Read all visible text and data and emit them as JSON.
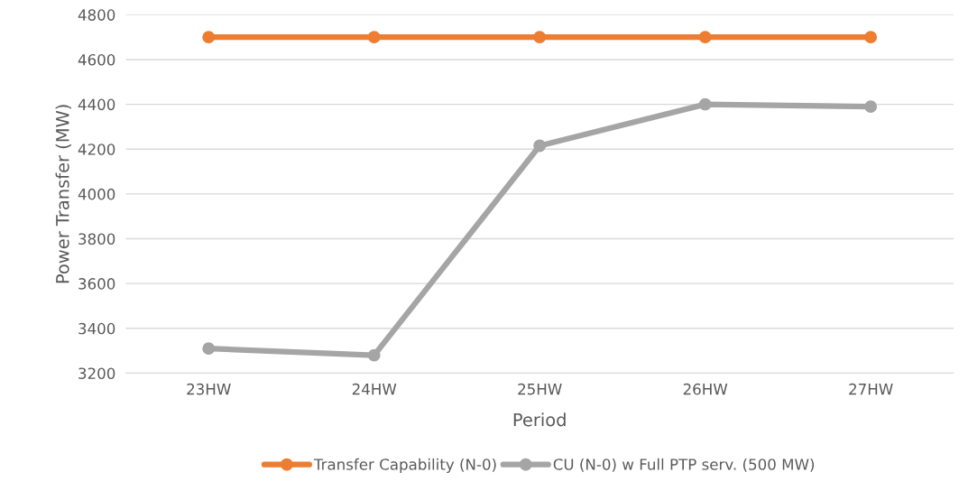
{
  "chart_data": {
    "type": "line",
    "xlabel": "Period",
    "ylabel": "Power Transfer (MW)",
    "categories": [
      "23HW",
      "24HW",
      "25HW",
      "26HW",
      "27HW"
    ],
    "series": [
      {
        "name": "Transfer Capability (N-0)",
        "color": "#ed7d31",
        "values": [
          4700,
          4700,
          4700,
          4700,
          4700
        ]
      },
      {
        "name": "CU (N-0) w Full PTP serv. (500 MW)",
        "color": "#a5a5a5",
        "values": [
          3310,
          3280,
          4215,
          4400,
          4390
        ]
      }
    ],
    "ylim": [
      3200,
      4800
    ],
    "yticks": [
      3200,
      3400,
      3600,
      3800,
      4000,
      4200,
      4400,
      4600,
      4800
    ],
    "grid": "y",
    "legend": "bottom",
    "marker": "circle",
    "line_style": "solid"
  }
}
